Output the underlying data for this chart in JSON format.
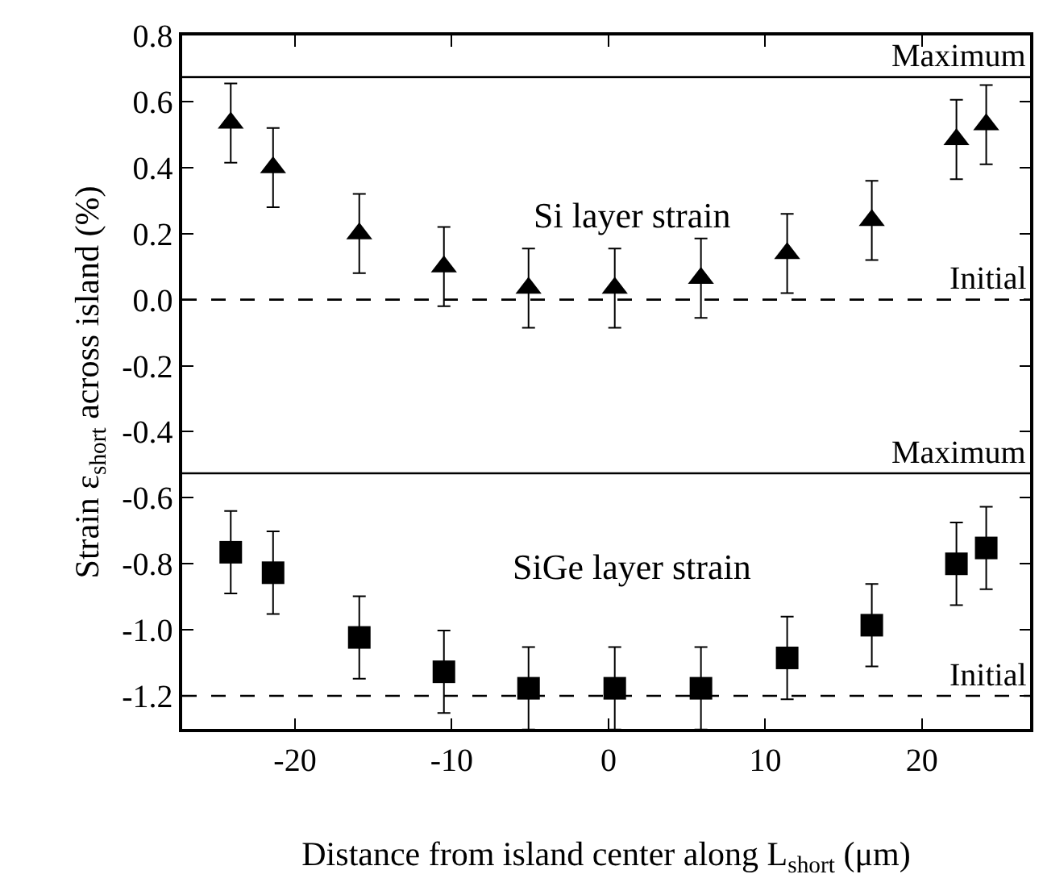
{
  "chart_data": {
    "type": "scatter",
    "xlabel": "Distance from island center along L$_{short}$ (μm)",
    "ylabel": "Strain ε$_{short}$ across island (%)",
    "x": [
      -24.1,
      -21.4,
      -15.9,
      -10.5,
      -5.1,
      0.4,
      5.9,
      11.4,
      16.8,
      22.2,
      24.1
    ],
    "series": [
      {
        "color": "#000000",
        "marker": "triangle",
        "values": [
          0.535,
          0.4,
          0.2,
          0.1,
          0.035,
          0.035,
          0.065,
          0.14,
          0.24,
          0.485,
          0.53
        ],
        "errors": [
          0.12,
          0.12,
          0.12,
          0.12,
          0.12,
          0.12,
          0.12,
          0.12,
          0.12,
          0.12,
          0.12
        ]
      },
      {
        "color": "#000000",
        "marker": "square",
        "values": [
          -0.765,
          -0.827,
          -1.023,
          -1.127,
          -1.177,
          -1.177,
          -1.177,
          -1.085,
          -0.986,
          -0.8,
          -0.752
        ],
        "errors": [
          0.125,
          0.125,
          0.125,
          0.125,
          0.125,
          0.125,
          0.125,
          0.125,
          0.125,
          0.125,
          0.125
        ]
      }
    ],
    "xlim": [
      -27.2,
      26.9
    ],
    "xticks": [
      -20,
      -10,
      0,
      10,
      20
    ],
    "ylim": [
      -1.3,
      0.8
    ],
    "yticks": [
      -1.2,
      {
        "value": -1,
        "label": "-1.0"
      },
      -0.8,
      -0.6,
      -0.4,
      -0.2,
      {
        "value": 0,
        "label": "0.0"
      },
      0.2,
      0.4,
      0.6,
      0.8
    ],
    "grid": false,
    "ref_lines": [
      {
        "axis": "y",
        "value": 0.674,
        "label": "Maximum",
        "line_style": "solid"
      },
      {
        "axis": "y",
        "value": 0.0,
        "label": "Initial",
        "line_style": "dashed"
      },
      {
        "axis": "y",
        "value": -0.526,
        "label": "Maximum",
        "line_style": "solid"
      },
      {
        "axis": "y",
        "value": -1.2,
        "label": "Initial",
        "line_style": "dashed"
      }
    ],
    "annotations": [
      "Si layer strain",
      "SiGe layer strain"
    ]
  }
}
